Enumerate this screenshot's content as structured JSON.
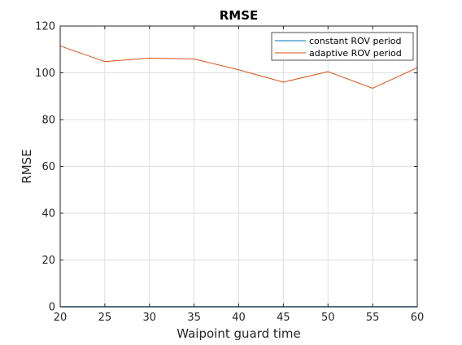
{
  "chart_data": {
    "type": "line",
    "title": "RMSE",
    "xlabel": "Waipoint guard time",
    "ylabel": "RMSE",
    "xlim": [
      20,
      60
    ],
    "ylim": [
      0,
      120
    ],
    "xticks": [
      20,
      25,
      30,
      35,
      40,
      45,
      50,
      55,
      60
    ],
    "yticks": [
      0,
      20,
      40,
      60,
      80,
      100,
      120
    ],
    "grid": true,
    "legend_position": "top-right",
    "x": [
      20,
      25,
      30,
      35,
      40,
      45,
      50,
      55,
      60
    ],
    "series": [
      {
        "name": "constant ROV period",
        "color": "#0072BD",
        "values": [
          0,
          0,
          0,
          0,
          0,
          0,
          0,
          0,
          0
        ]
      },
      {
        "name": "adaptive ROV period",
        "color": "#D95319",
        "values": [
          111.5,
          104.8,
          106.3,
          105.9,
          101.3,
          96.0,
          100.5,
          93.4,
          102.2
        ]
      }
    ]
  }
}
